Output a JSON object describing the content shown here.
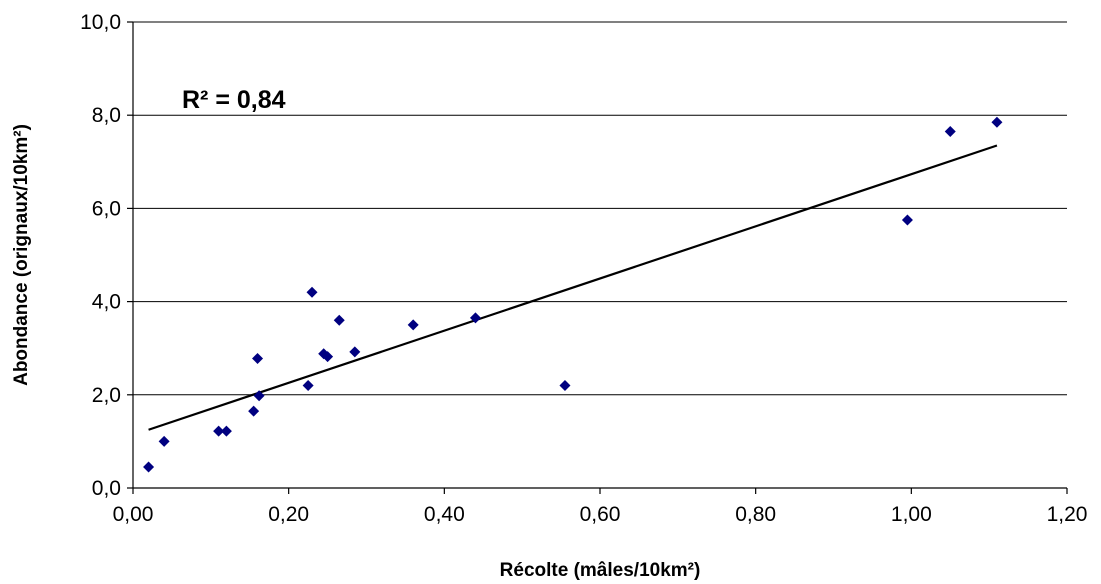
{
  "chart_data": {
    "type": "scatter",
    "title": "",
    "xlabel": "Récolte (mâles/10km²)",
    "ylabel": "Abondance (orignaux/10km²)",
    "xlim": [
      0,
      1.2
    ],
    "ylim": [
      0,
      10
    ],
    "x_ticks": [
      0,
      0.2,
      0.4,
      0.6,
      0.8,
      1.0,
      1.2
    ],
    "x_tick_labels": [
      "0,00",
      "0,20",
      "0,40",
      "0,60",
      "0,80",
      "1,00",
      "1,20"
    ],
    "y_ticks": [
      0,
      2,
      4,
      6,
      8,
      10
    ],
    "y_tick_labels": [
      "0,0",
      "2,0",
      "4,0",
      "6,0",
      "8,0",
      "10,0"
    ],
    "grid": "horizontal",
    "legend": "none",
    "marker_color": "#000080",
    "line_color": "#000000",
    "annotation": "R² = 0,84",
    "series": [
      {
        "points": [
          [
            0.02,
            0.45
          ],
          [
            0.04,
            1.0
          ],
          [
            0.11,
            1.22
          ],
          [
            0.12,
            1.22
          ],
          [
            0.155,
            1.65
          ],
          [
            0.16,
            2.78
          ],
          [
            0.162,
            1.98
          ],
          [
            0.225,
            2.2
          ],
          [
            0.23,
            4.2
          ],
          [
            0.245,
            2.88
          ],
          [
            0.25,
            2.82
          ],
          [
            0.265,
            3.6
          ],
          [
            0.285,
            2.92
          ],
          [
            0.36,
            3.5
          ],
          [
            0.44,
            3.65
          ],
          [
            0.555,
            2.2
          ],
          [
            0.995,
            5.75
          ],
          [
            1.05,
            7.65
          ],
          [
            1.11,
            7.85
          ]
        ]
      }
    ],
    "trendline": {
      "x": [
        0.02,
        1.11
      ],
      "y": [
        1.25,
        7.35
      ]
    }
  }
}
